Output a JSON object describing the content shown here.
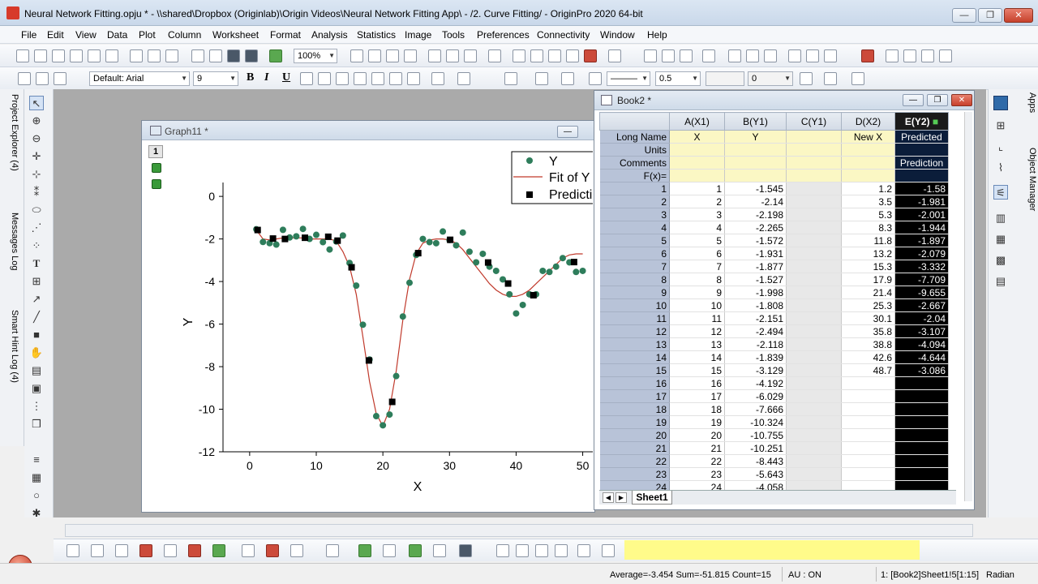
{
  "window": {
    "title": "Neural Network Fitting.opju * - \\\\shared\\Dropbox (Originlab)\\Origin Videos\\Neural Network Fitting App\\ - /2. Curve Fitting/ - OriginPro 2020 64-bit",
    "min": "—",
    "max": "❐",
    "close": "✕"
  },
  "menu": [
    "File",
    "Edit",
    "View",
    "Data",
    "Plot",
    "Column",
    "Worksheet",
    "Format",
    "Analysis",
    "Statistics",
    "Image",
    "Tools",
    "Preferences",
    "Connectivity",
    "Window",
    "Help"
  ],
  "toolbar1": {
    "zoom": "100%"
  },
  "toolbar2": {
    "font": "Default: Arial",
    "size": "9",
    "bold": "B",
    "italic": "I",
    "underline": "U",
    "line_width": "0.5",
    "pattern_value": "0"
  },
  "dock_left": {
    "project_explorer": "Project Explorer (4)",
    "messages_log": "Messages Log",
    "smart_hint": "Smart Hint Log (4)"
  },
  "dock_right": {
    "apps": "Apps",
    "object_manager": "Object Manager"
  },
  "graph": {
    "title": "Graph11 *",
    "layer": "1",
    "legend": [
      "Y",
      "Fit of Y",
      "Predicti"
    ],
    "colors": {
      "scatter": "#2e7d5b",
      "fit": "#c0392b",
      "prediction": "#000000"
    }
  },
  "chart_data": {
    "type": "scatter",
    "xlabel": "X",
    "ylabel": "Y",
    "xlim": [
      -4,
      52
    ],
    "ylim": [
      -12,
      0.5
    ],
    "xticks": [
      0,
      10,
      20,
      30,
      40,
      50
    ],
    "yticks": [
      0,
      -2,
      -4,
      -6,
      -8,
      -10,
      -12
    ],
    "series": [
      {
        "name": "Y",
        "marker": "circle",
        "x": [
          1,
          2,
          3,
          4,
          5,
          6,
          7,
          8,
          9,
          10,
          11,
          12,
          13,
          14,
          15,
          16,
          17,
          18,
          19,
          20,
          21,
          22,
          23,
          24,
          25,
          26,
          27,
          28,
          29,
          30,
          31,
          32,
          33,
          34,
          35,
          36,
          37,
          38,
          39,
          40,
          41,
          42,
          43,
          44,
          45,
          46,
          47,
          48,
          49,
          50
        ],
        "y": [
          -1.545,
          -2.14,
          -2.198,
          -2.265,
          -1.572,
          -1.931,
          -1.877,
          -1.527,
          -1.998,
          -1.808,
          -2.151,
          -2.494,
          -2.118,
          -1.839,
          -3.129,
          -4.192,
          -6.029,
          -7.666,
          -10.324,
          -10.755,
          -10.251,
          -8.443,
          -5.643,
          -4.058,
          -2.75,
          -2.0,
          -2.15,
          -2.2,
          -1.65,
          -2.05,
          -2.3,
          -1.7,
          -2.6,
          -3.1,
          -2.7,
          -3.3,
          -3.5,
          -3.9,
          -4.6,
          -5.5,
          -5.1,
          -4.6,
          -4.6,
          -3.5,
          -3.55,
          -3.3,
          -2.9,
          -3.1,
          -3.55,
          -3.5
        ]
      },
      {
        "name": "Fit of Y",
        "marker": "line",
        "x": [
          1,
          2,
          3,
          4,
          5,
          6,
          7,
          8,
          9,
          10,
          11,
          12,
          13,
          14,
          15,
          16,
          17,
          18,
          19,
          20,
          21,
          22,
          23,
          24,
          25,
          26,
          27,
          28,
          29,
          30,
          31,
          32,
          33,
          34,
          35,
          36,
          37,
          38,
          39,
          40,
          41,
          42,
          43,
          44,
          45,
          46,
          47,
          48,
          49,
          50
        ],
        "y": [
          -1.58,
          -2.0,
          -2.05,
          -2.0,
          -1.95,
          -1.95,
          -1.95,
          -1.95,
          -2.0,
          -2.0,
          -2.0,
          -2.0,
          -2.1,
          -2.6,
          -3.3,
          -4.6,
          -6.6,
          -8.7,
          -10.2,
          -10.8,
          -10.0,
          -8.2,
          -5.8,
          -3.9,
          -2.7,
          -2.2,
          -2.05,
          -2.0,
          -2.0,
          -2.05,
          -2.2,
          -2.5,
          -2.9,
          -3.3,
          -3.7,
          -4.1,
          -4.4,
          -4.6,
          -4.7,
          -4.7,
          -4.6,
          -4.4,
          -4.1,
          -3.8,
          -3.5,
          -3.2,
          -2.9,
          -2.75,
          -2.7,
          -2.7
        ]
      },
      {
        "name": "Prediction",
        "marker": "square",
        "x": [
          1.2,
          3.5,
          5.3,
          8.3,
          11.8,
          13.2,
          15.3,
          17.9,
          21.4,
          25.3,
          30.1,
          35.8,
          38.8,
          42.6,
          48.7
        ],
        "y": [
          -1.58,
          -1.981,
          -2.001,
          -1.944,
          -1.897,
          -2.079,
          -3.332,
          -7.709,
          -9.655,
          -2.667,
          -2.04,
          -3.107,
          -4.094,
          -4.644,
          -3.086
        ]
      }
    ]
  },
  "book": {
    "title": "Book2 *",
    "columns": [
      "A(X1)",
      "B(Y1)",
      "C(Y1)",
      "D(X2)",
      "E(Y2)"
    ],
    "meta_rows": [
      {
        "label": "Long Name",
        "cells": [
          "X",
          "Y",
          "",
          "New X",
          "Predicted"
        ]
      },
      {
        "label": "Units",
        "cells": [
          "",
          "",
          "",
          "",
          ""
        ]
      },
      {
        "label": "Comments",
        "cells": [
          "",
          "",
          "",
          "",
          "Prediction"
        ]
      },
      {
        "label": "F(x)=",
        "cells": [
          "",
          "",
          "",
          "",
          ""
        ]
      }
    ],
    "rows": [
      [
        "1",
        "1",
        "-1.545",
        "",
        "1.2",
        "-1.58"
      ],
      [
        "2",
        "2",
        "-2.14",
        "",
        "3.5",
        "-1.981"
      ],
      [
        "3",
        "3",
        "-2.198",
        "",
        "5.3",
        "-2.001"
      ],
      [
        "4",
        "4",
        "-2.265",
        "",
        "8.3",
        "-1.944"
      ],
      [
        "5",
        "5",
        "-1.572",
        "",
        "11.8",
        "-1.897"
      ],
      [
        "6",
        "6",
        "-1.931",
        "",
        "13.2",
        "-2.079"
      ],
      [
        "7",
        "7",
        "-1.877",
        "",
        "15.3",
        "-3.332"
      ],
      [
        "8",
        "8",
        "-1.527",
        "",
        "17.9",
        "-7.709"
      ],
      [
        "9",
        "9",
        "-1.998",
        "",
        "21.4",
        "-9.655"
      ],
      [
        "10",
        "10",
        "-1.808",
        "",
        "25.3",
        "-2.667"
      ],
      [
        "11",
        "11",
        "-2.151",
        "",
        "30.1",
        "-2.04"
      ],
      [
        "12",
        "12",
        "-2.494",
        "",
        "35.8",
        "-3.107"
      ],
      [
        "13",
        "13",
        "-2.118",
        "",
        "38.8",
        "-4.094"
      ],
      [
        "14",
        "14",
        "-1.839",
        "",
        "42.6",
        "-4.644"
      ],
      [
        "15",
        "15",
        "-3.129",
        "",
        "48.7",
        "-3.086"
      ],
      [
        "16",
        "16",
        "-4.192",
        "",
        "",
        ""
      ],
      [
        "17",
        "17",
        "-6.029",
        "",
        "",
        ""
      ],
      [
        "18",
        "18",
        "-7.666",
        "",
        "",
        ""
      ],
      [
        "19",
        "19",
        "-10.324",
        "",
        "",
        ""
      ],
      [
        "20",
        "20",
        "-10.755",
        "",
        "",
        ""
      ],
      [
        "21",
        "21",
        "-10.251",
        "",
        "",
        ""
      ],
      [
        "22",
        "22",
        "-8.443",
        "",
        "",
        ""
      ],
      [
        "23",
        "23",
        "-5.643",
        "",
        "",
        ""
      ],
      [
        "24",
        "24",
        "-4.058",
        "",
        "",
        ""
      ]
    ],
    "sheet_tab": "Sheet1"
  },
  "status": {
    "summary": "Average=-3.454 Sum=-51.815 Count=15",
    "au": "AU : ON",
    "cell_ref": "1: [Book2]Sheet1!5[1:15]",
    "angle": "Radian"
  }
}
